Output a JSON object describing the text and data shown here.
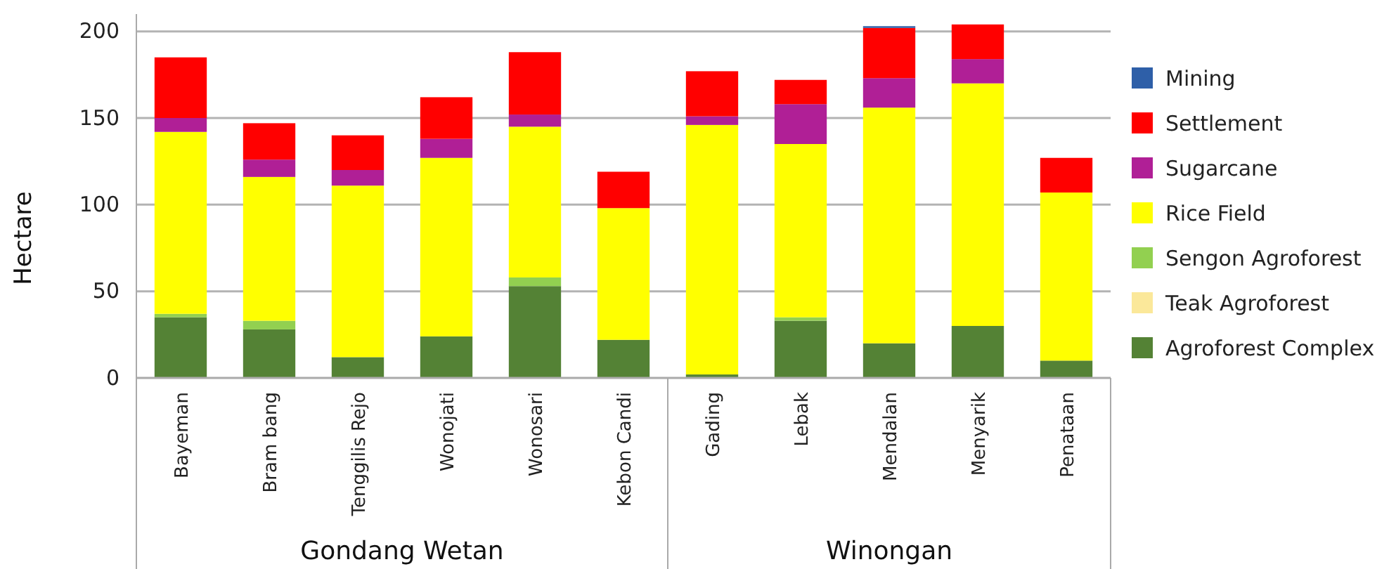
{
  "chart_data": {
    "type": "bar",
    "stacked": true,
    "ylabel": "Hectare",
    "ylim": [
      0,
      210
    ],
    "yticks": [
      0,
      50,
      100,
      150,
      200
    ],
    "grid": "y",
    "legend": "right",
    "categories": [
      "Bayeman",
      "Bram bang",
      "Tenggilis Rejo",
      "Wonojati",
      "Wonosari",
      "Kebon Candi",
      "Gading",
      "Lebak",
      "Mendalan",
      "Menyarik",
      "Penataan"
    ],
    "annotations": [
      "Gondang Wetan",
      "Winongan"
    ],
    "series": [
      {
        "name": "Agroforest Complex",
        "color": "#548235",
        "values": [
          35,
          28,
          12,
          24,
          53,
          22,
          2,
          33,
          20,
          30,
          10
        ]
      },
      {
        "name": "Teak Agroforest",
        "color": "#fbe89a",
        "values": [
          0,
          0,
          0,
          0,
          0,
          0,
          0,
          0,
          0,
          0,
          0
        ]
      },
      {
        "name": "Sengon Agroforest",
        "color": "#92d050",
        "values": [
          2,
          5,
          0,
          0,
          5,
          0,
          0,
          2,
          0,
          0,
          0
        ]
      },
      {
        "name": "Rice Field",
        "color": "#ffff00",
        "values": [
          105,
          83,
          99,
          103,
          87,
          76,
          144,
          100,
          136,
          140,
          97
        ]
      },
      {
        "name": "Sugarcane",
        "color": "#b01f96",
        "values": [
          8,
          10,
          9,
          11,
          7,
          0,
          5,
          23,
          17,
          14,
          0
        ]
      },
      {
        "name": "Settlement",
        "color": "#ff0000",
        "values": [
          35,
          21,
          20,
          24,
          36,
          21,
          26,
          14,
          29,
          20,
          20
        ]
      },
      {
        "name": "Mining",
        "color": "#2e5fa8",
        "values": [
          0,
          0,
          0,
          0,
          0,
          0,
          0,
          0,
          1,
          0,
          0
        ]
      }
    ]
  }
}
